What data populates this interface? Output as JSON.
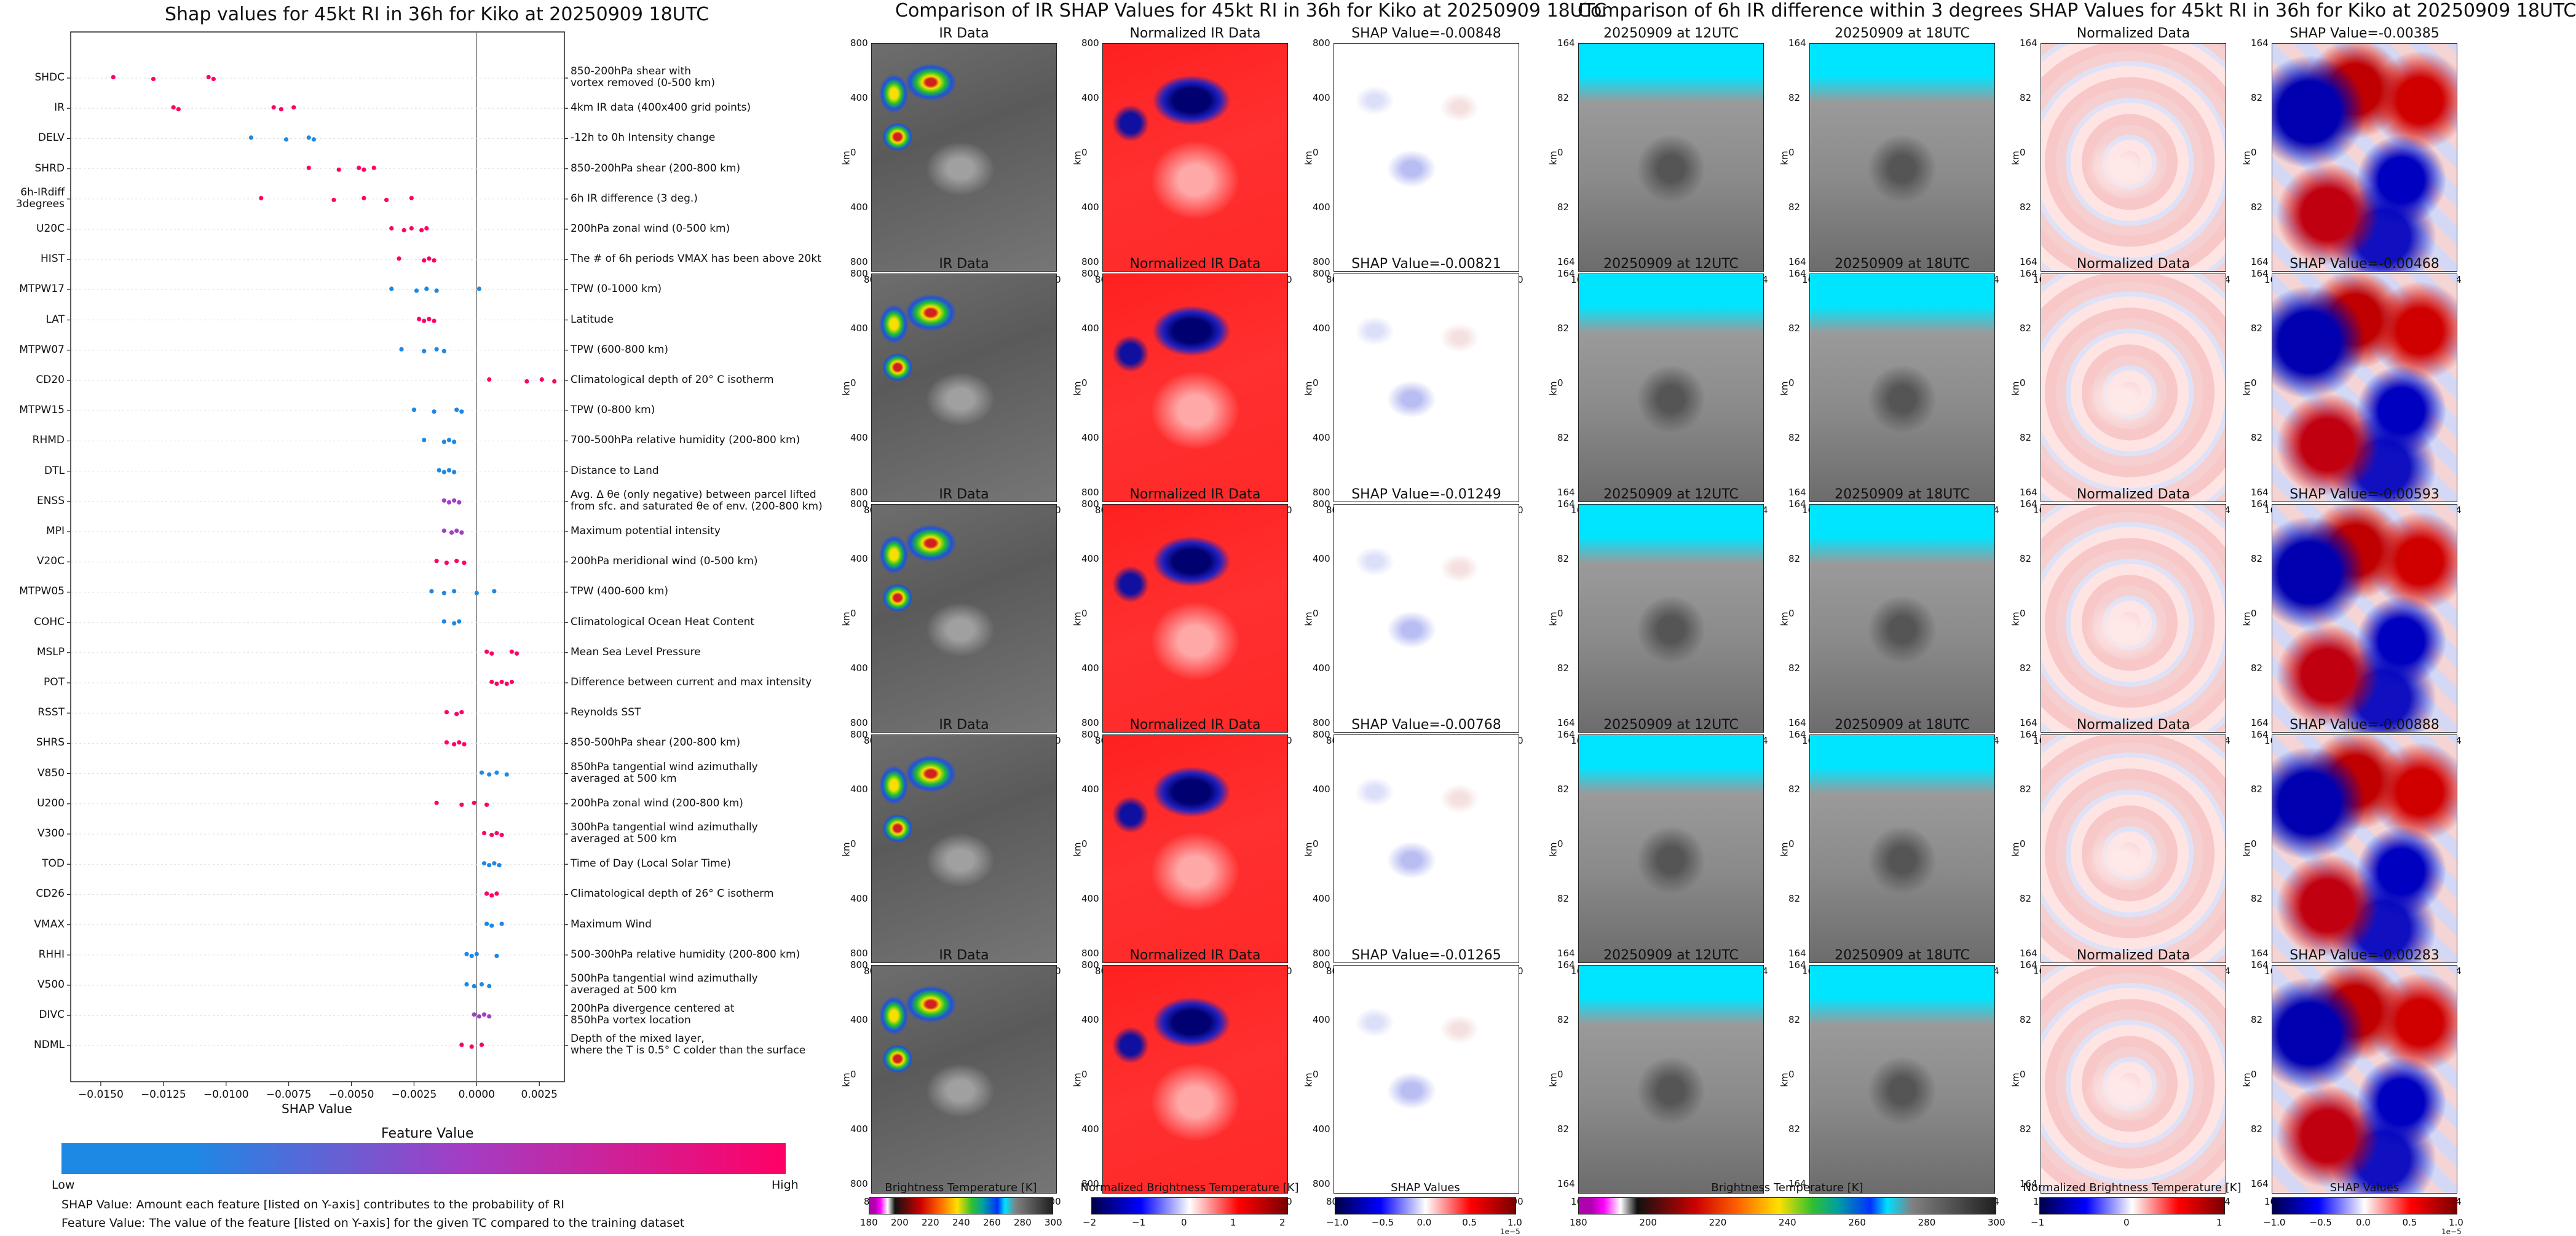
{
  "shap_summary": {
    "title": "Shap values for 45kt RI in 36h for Kiko at 20250909 18UTC",
    "xlabel": "SHAP Value",
    "xticks": [
      "−0.0150",
      "−0.0125",
      "−0.0100",
      "−0.0075",
      "−0.0050",
      "−0.0025",
      "0.0000",
      "0.0025"
    ],
    "feature_value_title": "Feature Value",
    "low_label": "Low",
    "high_label": "High",
    "note_shap": "SHAP Value: Amount each feature [listed on Y-axis] contributes to the probability of RI",
    "note_feature": "Feature Value: The value of the feature [listed on Y-axis] for the given TC compared to the training dataset"
  },
  "chart_data": [
    {
      "type": "scatter",
      "title": "Shap values for 45kt RI in 36h for Kiko at 20250909 18UTC",
      "xlabel": "SHAP Value",
      "xlim": [
        -0.0162,
        0.0035
      ],
      "colors": {
        "low": "#1e88e5",
        "mid": "#a23ec5",
        "high": "#ff0066"
      },
      "features": [
        {
          "name": "SHDC",
          "desc": "850-200hPa shear with\nvortex removed (0-500 km)",
          "values": [
            -0.0145,
            -0.0129,
            -0.0107,
            -0.0105
          ],
          "level": "high"
        },
        {
          "name": "IR",
          "desc": "4km IR data (400x400 grid points)",
          "values": [
            -0.0121,
            -0.0119,
            -0.0081,
            -0.0078,
            -0.0073
          ],
          "level": "high"
        },
        {
          "name": "DELV",
          "desc": "-12h to 0h Intensity change",
          "values": [
            -0.009,
            -0.0076,
            -0.0067,
            -0.0065
          ],
          "level": "low"
        },
        {
          "name": "SHRD",
          "desc": "850-200hPa shear (200-800 km)",
          "values": [
            -0.0067,
            -0.0055,
            -0.0047,
            -0.0045,
            -0.0041
          ],
          "level": "high"
        },
        {
          "name": "6h-IRdiff\n3degrees",
          "desc": "6h IR difference (3 deg.)",
          "values": [
            -0.0086,
            -0.0057,
            -0.0045,
            -0.0036,
            -0.0026
          ],
          "level": "high"
        },
        {
          "name": "U20C",
          "desc": "200hPa zonal wind (0-500 km)",
          "values": [
            -0.0034,
            -0.0029,
            -0.0026,
            -0.0022,
            -0.002
          ],
          "level": "high"
        },
        {
          "name": "HIST",
          "desc": "The # of 6h periods VMAX has been above 20kt",
          "values": [
            -0.0031,
            -0.0021,
            -0.0019,
            -0.0017
          ],
          "level": "high"
        },
        {
          "name": "MTPW17",
          "desc": "TPW (0-1000 km)",
          "values": [
            -0.0034,
            -0.0024,
            -0.002,
            -0.0016,
            0.0001
          ],
          "level": "low"
        },
        {
          "name": "LAT",
          "desc": "Latitude",
          "values": [
            -0.0023,
            -0.0021,
            -0.0019,
            -0.0017
          ],
          "level": "high"
        },
        {
          "name": "MTPW07",
          "desc": "TPW (600-800 km)",
          "values": [
            -0.003,
            -0.0021,
            -0.0016,
            -0.0013
          ],
          "level": "low"
        },
        {
          "name": "CD20",
          "desc": "Climatological depth of 20° C isotherm",
          "values": [
            0.0005,
            0.002,
            0.0026,
            0.0031
          ],
          "level": "high"
        },
        {
          "name": "MTPW15",
          "desc": "TPW (0-800 km)",
          "values": [
            -0.0025,
            -0.0017,
            -0.0008,
            -0.0006
          ],
          "level": "low"
        },
        {
          "name": "RHMD",
          "desc": "700-500hPa relative humidity (200-800 km)",
          "values": [
            -0.0021,
            -0.0013,
            -0.0011,
            -0.0009
          ],
          "level": "low"
        },
        {
          "name": "DTL",
          "desc": "Distance to Land",
          "values": [
            -0.0015,
            -0.0013,
            -0.0011,
            -0.0009
          ],
          "level": "low"
        },
        {
          "name": "ENSS",
          "desc": "Avg. Δ θe (only negative) between parcel lifted\nfrom sfc. and saturated θe of env. (200-800 km)",
          "values": [
            -0.0013,
            -0.0011,
            -0.0009,
            -0.0007
          ],
          "level": "mid"
        },
        {
          "name": "MPI",
          "desc": "Maximum potential intensity",
          "values": [
            -0.0013,
            -0.001,
            -0.0008,
            -0.0006
          ],
          "level": "mid"
        },
        {
          "name": "V20C",
          "desc": "200hPa meridional wind (0-500 km)",
          "values": [
            -0.0016,
            -0.0012,
            -0.0008,
            -0.0005
          ],
          "level": "high"
        },
        {
          "name": "MTPW05",
          "desc": "TPW (400-600 km)",
          "values": [
            -0.0018,
            -0.0013,
            -0.0009,
            0.0,
            0.0007
          ],
          "level": "low"
        },
        {
          "name": "COHC",
          "desc": "Climatological Ocean Heat Content",
          "values": [
            -0.0013,
            -0.0009,
            -0.0007
          ],
          "level": "low"
        },
        {
          "name": "MSLP",
          "desc": "Mean Sea Level Pressure",
          "values": [
            0.0004,
            0.0006,
            0.0014,
            0.0016
          ],
          "level": "high"
        },
        {
          "name": "POT",
          "desc": "Difference between current and max intensity",
          "values": [
            0.0006,
            0.0008,
            0.001,
            0.0012,
            0.0014
          ],
          "level": "high"
        },
        {
          "name": "RSST",
          "desc": "Reynolds SST",
          "values": [
            -0.0012,
            -0.0008,
            -0.0006
          ],
          "level": "high"
        },
        {
          "name": "SHRS",
          "desc": "850-500hPa shear (200-800 km)",
          "values": [
            -0.0012,
            -0.0009,
            -0.0007,
            -0.0005
          ],
          "level": "high"
        },
        {
          "name": "V850",
          "desc": "850hPa tangential wind azimuthally\naveraged at 500 km",
          "values": [
            0.0002,
            0.0005,
            0.0008,
            0.0012
          ],
          "level": "low"
        },
        {
          "name": "U200",
          "desc": "200hPa zonal wind (200-800 km)",
          "values": [
            -0.0016,
            -0.0006,
            -0.0001,
            0.0004
          ],
          "level": "high"
        },
        {
          "name": "V300",
          "desc": "300hPa tangential wind azimuthally\naveraged at 500 km",
          "values": [
            0.0003,
            0.0006,
            0.0008,
            0.001
          ],
          "level": "high"
        },
        {
          "name": "TOD",
          "desc": "Time of Day (Local Solar Time)",
          "values": [
            0.0003,
            0.0005,
            0.0007,
            0.0009
          ],
          "level": "low"
        },
        {
          "name": "CD26",
          "desc": "Climatological depth of 26° C isotherm",
          "values": [
            0.0004,
            0.0006,
            0.0008
          ],
          "level": "high"
        },
        {
          "name": "VMAX",
          "desc": "Maximum Wind",
          "values": [
            0.0004,
            0.0006,
            0.001
          ],
          "level": "low"
        },
        {
          "name": "RHHI",
          "desc": "500-300hPa relative humidity (200-800 km)",
          "values": [
            -0.0004,
            -0.0002,
            0.0,
            0.0008
          ],
          "level": "low"
        },
        {
          "name": "V500",
          "desc": "500hPa tangential wind azimuthally\naveraged at 500 km",
          "values": [
            -0.0004,
            -0.0001,
            0.0002,
            0.0005
          ],
          "level": "low"
        },
        {
          "name": "DIVC",
          "desc": "200hPa divergence centered at\n850hPa vortex location",
          "values": [
            -0.0001,
            0.0001,
            0.0003,
            0.0005
          ],
          "level": "mid"
        },
        {
          "name": "NDML",
          "desc": "Depth of the mixed layer,\nwhere the T is 0.5° C colder than the surface",
          "values": [
            -0.0006,
            -0.0002,
            0.0002
          ],
          "level": "high"
        }
      ]
    },
    {
      "type": "heatmap",
      "title": "Comparison of IR SHAP Values for 45kt RI in 36h for Kiko at 20250909 18UTC",
      "columns": [
        "IR Data",
        "Normalized IR Data"
      ],
      "shap_titles": [
        "SHAP Value=-0.00848",
        "SHAP Value=-0.00821",
        "SHAP Value=-0.01249",
        "SHAP Value=-0.00768",
        "SHAP Value=-0.01265"
      ],
      "axis_ticks": [
        "800",
        "400",
        "0",
        "400",
        "800"
      ],
      "axis_label": "km",
      "colorbars": [
        {
          "title": "Brightness Temperature [K]",
          "ticks": [
            "180",
            "200",
            "220",
            "240",
            "260",
            "280",
            "300"
          ]
        },
        {
          "title": "Normalized Brightness Temperature [K]",
          "ticks": [
            "−2",
            "−1",
            "0",
            "1",
            "2"
          ]
        },
        {
          "title": "SHAP Values",
          "ticks": [
            "−1.0",
            "−0.5",
            "0.0",
            "0.5",
            "1.0"
          ],
          "exponent": "1e−5"
        }
      ]
    },
    {
      "type": "heatmap",
      "title": "Comparison of 6h IR difference within 3 degrees SHAP Values for 45kt RI in 36h for Kiko at 20250909 18UTC",
      "columns": [
        "20250909 at 12UTC",
        "20250909 at 18UTC",
        "Normalized Data"
      ],
      "shap_titles": [
        "SHAP Value=-0.00385",
        "SHAP Value=-0.00468",
        "SHAP Value=-0.00593",
        "SHAP Value=-0.00888",
        "SHAP Value=-0.00283"
      ],
      "axis_ticks": [
        "164",
        "82",
        "0",
        "82",
        "164"
      ],
      "axis_label": "km",
      "colorbars": [
        {
          "title": "Brightness Temperature [K]",
          "ticks": [
            "180",
            "200",
            "220",
            "240",
            "260",
            "280",
            "300"
          ]
        },
        {
          "title": "Normalized Brightness Temperature [K]",
          "ticks": [
            "−1",
            "0",
            "1"
          ]
        },
        {
          "title": "SHAP Values",
          "ticks": [
            "−1.0",
            "−0.5",
            "0.0",
            "0.5",
            "1.0"
          ],
          "exponent": "1e−5"
        }
      ]
    }
  ]
}
